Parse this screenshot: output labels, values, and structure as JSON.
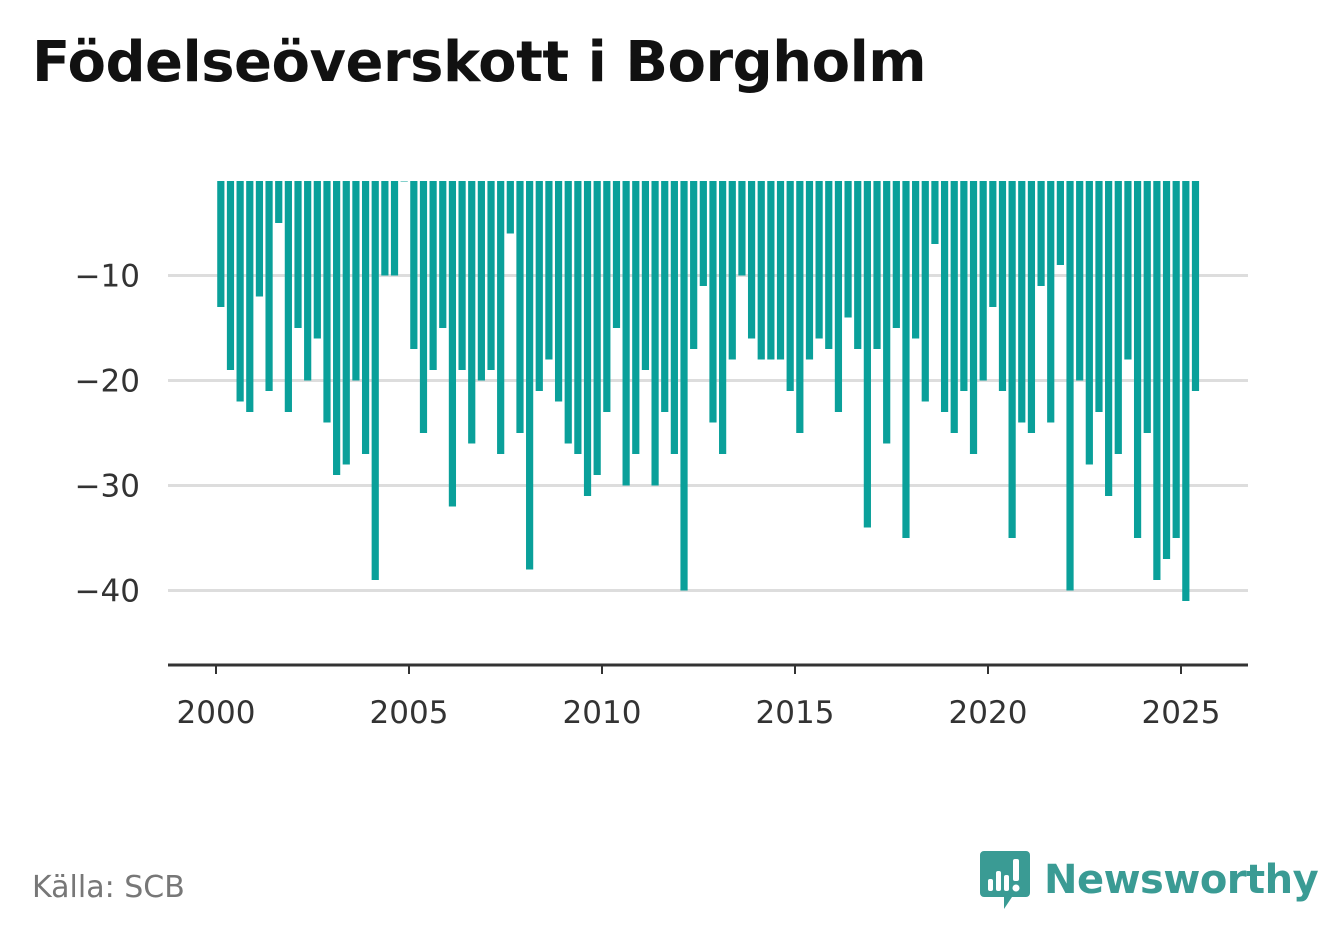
{
  "header": {
    "title": "Födelseöverskott i Borgholm"
  },
  "footer": {
    "source": "Källa: SCB",
    "brand": "Newsworthy"
  },
  "colors": {
    "bar": "#0aa09a",
    "grid": "#dddddd",
    "axis": "#333333",
    "brand": "#3a9b94"
  },
  "chart_data": {
    "type": "bar",
    "title": "Födelseöverskott i Borgholm",
    "xlabel": "",
    "ylabel": "",
    "x_ticks": [
      "2000",
      "2005",
      "2010",
      "2015",
      "2020",
      "2025"
    ],
    "y_ticks": [
      "−10",
      "−20",
      "−30",
      "−40"
    ],
    "y_tick_values": [
      -10,
      -20,
      -30,
      -40
    ],
    "ylim": [
      -46,
      -1
    ],
    "start_year": 2000,
    "periods_per_year": 4,
    "grid": true,
    "values": [
      -13,
      -19,
      -22,
      -23,
      -12,
      -21,
      -5,
      -23,
      -15,
      -20,
      -16,
      -24,
      -29,
      -28,
      -20,
      -27,
      -39,
      -10,
      -10,
      -1,
      -17,
      -25,
      -19,
      -15,
      -32,
      -19,
      -26,
      -20,
      -19,
      -27,
      -6,
      -25,
      -38,
      -21,
      -18,
      -22,
      -26,
      -27,
      -31,
      -29,
      -23,
      -15,
      -30,
      -27,
      -19,
      -30,
      -23,
      -27,
      -40,
      -17,
      -11,
      -24,
      -27,
      -18,
      -10,
      -16,
      -18,
      -18,
      -18,
      -21,
      -25,
      -18,
      -16,
      -17,
      -23,
      -14,
      -17,
      -34,
      -17,
      -26,
      -15,
      -35,
      -16,
      -22,
      -7,
      -23,
      -25,
      -21,
      -27,
      -20,
      -13,
      -21,
      -35,
      -24,
      -25,
      -11,
      -24,
      -9,
      -40,
      -20,
      -28,
      -23,
      -31,
      -27,
      -18,
      -35,
      -25,
      -39,
      -37,
      -35,
      -41,
      -21
    ]
  }
}
